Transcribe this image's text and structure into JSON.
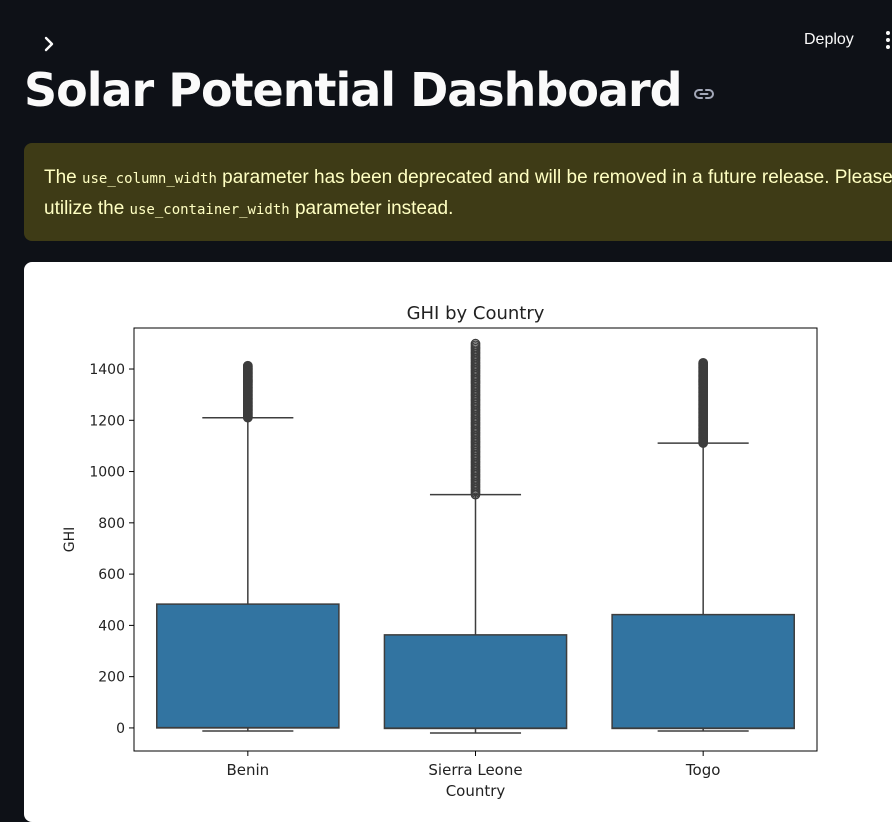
{
  "header": {
    "deploy_label": "Deploy"
  },
  "page": {
    "title": "Solar Potential Dashboard"
  },
  "warning": {
    "text_1": "The ",
    "code_1": "use_column_width",
    "text_2": " parameter has been deprecated and will be removed in a future release. Please",
    "text_3": "utilize the ",
    "code_2": "use_container_width",
    "text_4": " parameter instead."
  },
  "colors": {
    "background": "#0e1117",
    "warning_bg": "#3e3b16",
    "warning_text": "#ffffc2",
    "box_fill": "#3274a1",
    "box_edge": "#3d3d3d"
  },
  "chart_data": {
    "type": "box",
    "title": "GHI by Country",
    "xlabel": "Country",
    "ylabel": "GHI",
    "ylim": [
      -90,
      1560
    ],
    "yticks": [
      0,
      200,
      400,
      600,
      800,
      1000,
      1200,
      1400
    ],
    "grid": false,
    "categories": [
      "Benin",
      "Sierra Leone",
      "Togo"
    ],
    "boxes": [
      {
        "category": "Benin",
        "whisker_low": -12,
        "q1": 0,
        "median": 1,
        "q3": 483,
        "whisker_high": 1210,
        "outlier_max": 1413
      },
      {
        "category": "Sierra Leone",
        "whisker_low": -20,
        "q1": -2,
        "median": -1,
        "q3": 363,
        "whisker_high": 910,
        "outlier_max": 1499
      },
      {
        "category": "Togo",
        "whisker_low": -12,
        "q1": -2,
        "median": -1,
        "q3": 442,
        "whisker_high": 1111,
        "outlier_max": 1424
      }
    ]
  }
}
